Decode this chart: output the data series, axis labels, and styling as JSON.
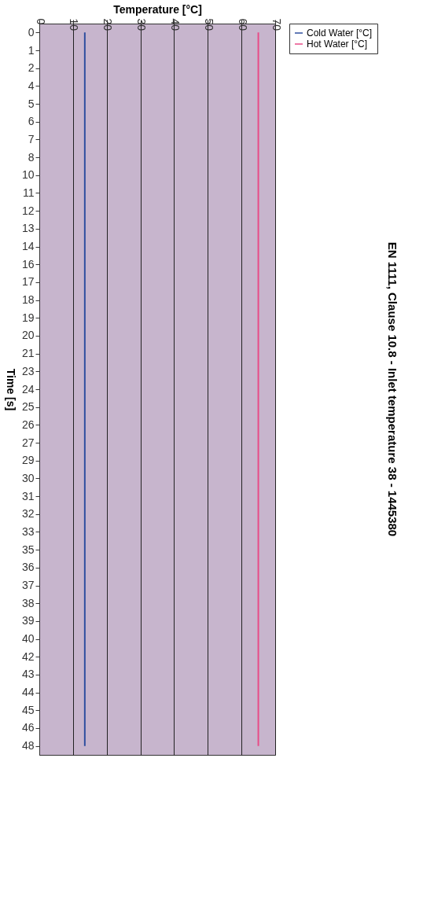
{
  "chart_data": {
    "type": "line",
    "title": "EN 1111, Clause 10.8 - Inlet temperature 38 - 1445380",
    "xlabel": "Temperature [°C]",
    "ylabel": "Time [s]",
    "orientation": "horizontal",
    "categories": [
      "0",
      "1",
      "2",
      "4",
      "5",
      "6",
      "7",
      "8",
      "10",
      "11",
      "12",
      "13",
      "14",
      "16",
      "17",
      "18",
      "19",
      "20",
      "21",
      "23",
      "24",
      "25",
      "26",
      "27",
      "29",
      "30",
      "31",
      "32",
      "33",
      "35",
      "36",
      "37",
      "38",
      "39",
      "40",
      "42",
      "43",
      "44",
      "45",
      "46",
      "48"
    ],
    "series": [
      {
        "name": "Cold Water [°C]",
        "color": "#2f4f9f",
        "values": [
          13.5,
          13.5,
          13.5,
          13.5,
          13.5,
          13.5,
          13.5,
          13.5,
          13.5,
          13.5,
          13.5,
          13.5,
          13.5,
          13.5,
          13.5,
          13.5,
          13.5,
          13.5,
          13.5,
          13.5,
          13.5,
          13.5,
          13.5,
          13.5,
          13.5,
          13.5,
          13.5,
          13.5,
          13.5,
          13.5,
          13.5,
          13.5,
          13.5,
          13.5,
          13.5,
          13.5,
          13.5,
          13.5,
          13.5,
          13.5,
          13.5
        ]
      },
      {
        "name": "Hot Water [°C]",
        "color": "#e84c88",
        "values": [
          65,
          65,
          65,
          65,
          65,
          65,
          65,
          65,
          65,
          65,
          65,
          65,
          65,
          65,
          65,
          65,
          65,
          65,
          65,
          65,
          65,
          65,
          65,
          65,
          65,
          65,
          65,
          65,
          65,
          65,
          65,
          65,
          65,
          65,
          65,
          65,
          65,
          65,
          65,
          65,
          65
        ]
      }
    ],
    "xlim": [
      0,
      70
    ],
    "xticks": [
      0,
      10,
      20,
      30,
      40,
      50,
      60,
      70
    ],
    "grid": "x",
    "legend": "right",
    "marker": "none",
    "line_style": "solid"
  }
}
